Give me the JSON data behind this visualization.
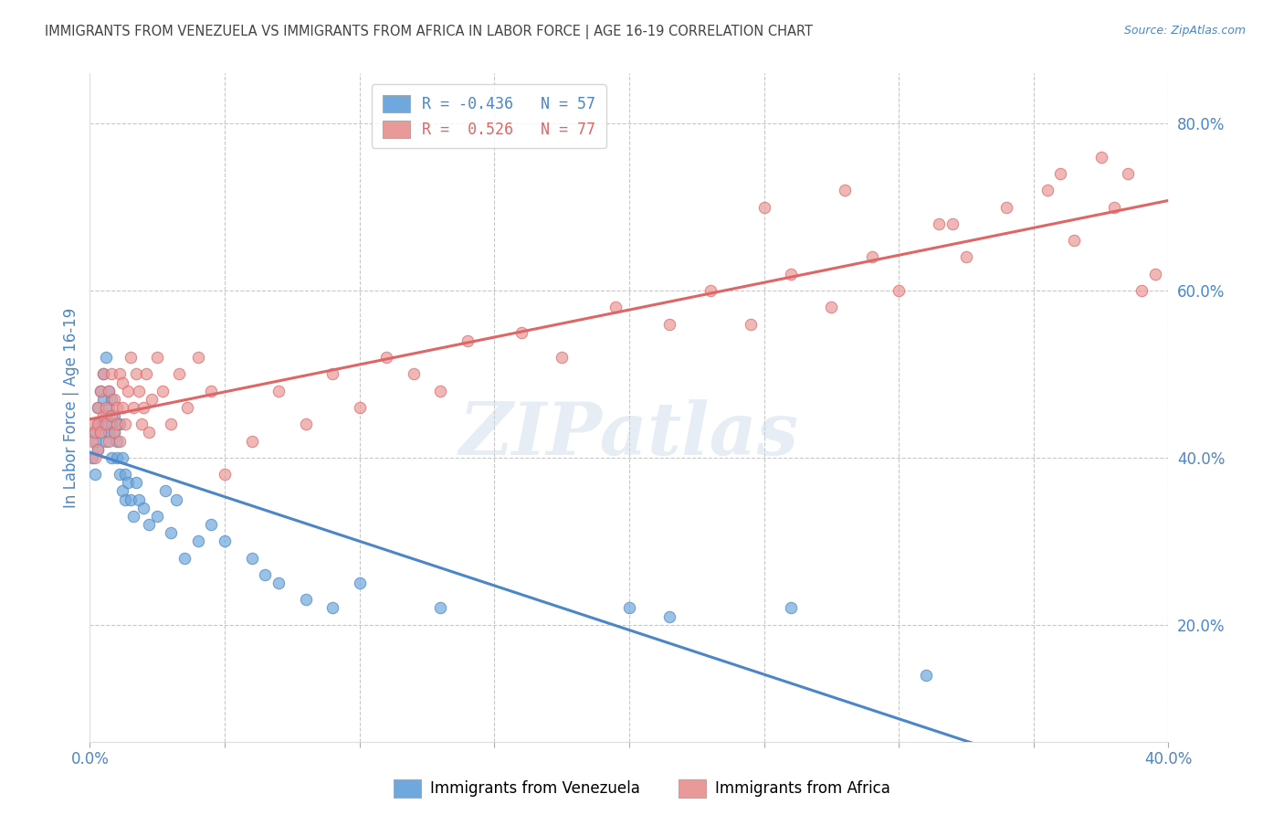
{
  "title": "IMMIGRANTS FROM VENEZUELA VS IMMIGRANTS FROM AFRICA IN LABOR FORCE | AGE 16-19 CORRELATION CHART",
  "source": "Source: ZipAtlas.com",
  "ylabel": "In Labor Force | Age 16-19",
  "xlim": [
    0.0,
    0.4
  ],
  "ylim": [
    0.06,
    0.86
  ],
  "xticks": [
    0.0,
    0.05,
    0.1,
    0.15,
    0.2,
    0.25,
    0.3,
    0.35,
    0.4
  ],
  "xtick_labels": [
    "0.0%",
    "",
    "",
    "",
    "",
    "",
    "",
    "",
    "40.0%"
  ],
  "yticks_right": [
    0.2,
    0.4,
    0.6,
    0.8
  ],
  "ytick_labels_right": [
    "20.0%",
    "40.0%",
    "60.0%",
    "80.0%"
  ],
  "blue_R": "-0.436",
  "blue_N": "57",
  "pink_R": "0.526",
  "pink_N": "77",
  "blue_color": "#6fa8dc",
  "pink_color": "#ea9999",
  "blue_line_color": "#4a86c8",
  "pink_line_color": "#e06666",
  "legend_label_blue": "Immigrants from Venezuela",
  "legend_label_pink": "Immigrants from Africa",
  "watermark": "ZIPatlas",
  "background_color": "#ffffff",
  "grid_color": "#c8c8c8",
  "title_color": "#444444",
  "axis_label_color": "#4a86c8",
  "venezuela_x": [
    0.001,
    0.001,
    0.002,
    0.002,
    0.003,
    0.003,
    0.003,
    0.004,
    0.004,
    0.005,
    0.005,
    0.005,
    0.006,
    0.006,
    0.006,
    0.007,
    0.007,
    0.007,
    0.008,
    0.008,
    0.008,
    0.009,
    0.009,
    0.01,
    0.01,
    0.011,
    0.011,
    0.012,
    0.012,
    0.013,
    0.013,
    0.014,
    0.015,
    0.016,
    0.017,
    0.018,
    0.02,
    0.022,
    0.025,
    0.028,
    0.03,
    0.032,
    0.035,
    0.04,
    0.045,
    0.05,
    0.06,
    0.065,
    0.07,
    0.08,
    0.09,
    0.1,
    0.13,
    0.2,
    0.215,
    0.26,
    0.31
  ],
  "venezuela_y": [
    0.4,
    0.43,
    0.42,
    0.38,
    0.44,
    0.41,
    0.46,
    0.43,
    0.48,
    0.44,
    0.47,
    0.5,
    0.42,
    0.45,
    0.52,
    0.43,
    0.46,
    0.48,
    0.4,
    0.44,
    0.47,
    0.43,
    0.45,
    0.4,
    0.42,
    0.44,
    0.38,
    0.36,
    0.4,
    0.35,
    0.38,
    0.37,
    0.35,
    0.33,
    0.37,
    0.35,
    0.34,
    0.32,
    0.33,
    0.36,
    0.31,
    0.35,
    0.28,
    0.3,
    0.32,
    0.3,
    0.28,
    0.26,
    0.25,
    0.23,
    0.22,
    0.25,
    0.22,
    0.22,
    0.21,
    0.22,
    0.14
  ],
  "africa_x": [
    0.001,
    0.001,
    0.002,
    0.002,
    0.003,
    0.003,
    0.003,
    0.004,
    0.004,
    0.005,
    0.005,
    0.006,
    0.006,
    0.007,
    0.007,
    0.008,
    0.008,
    0.009,
    0.009,
    0.01,
    0.01,
    0.011,
    0.011,
    0.012,
    0.012,
    0.013,
    0.014,
    0.015,
    0.016,
    0.017,
    0.018,
    0.019,
    0.02,
    0.021,
    0.022,
    0.023,
    0.025,
    0.027,
    0.03,
    0.033,
    0.036,
    0.04,
    0.045,
    0.05,
    0.06,
    0.07,
    0.08,
    0.09,
    0.1,
    0.11,
    0.12,
    0.13,
    0.14,
    0.16,
    0.175,
    0.195,
    0.215,
    0.23,
    0.245,
    0.26,
    0.275,
    0.29,
    0.3,
    0.315,
    0.325,
    0.34,
    0.355,
    0.365,
    0.375,
    0.385,
    0.25,
    0.28,
    0.32,
    0.36,
    0.38,
    0.39,
    0.395
  ],
  "africa_y": [
    0.42,
    0.44,
    0.4,
    0.43,
    0.44,
    0.46,
    0.41,
    0.48,
    0.43,
    0.45,
    0.5,
    0.44,
    0.46,
    0.48,
    0.42,
    0.45,
    0.5,
    0.43,
    0.47,
    0.44,
    0.46,
    0.5,
    0.42,
    0.46,
    0.49,
    0.44,
    0.48,
    0.52,
    0.46,
    0.5,
    0.48,
    0.44,
    0.46,
    0.5,
    0.43,
    0.47,
    0.52,
    0.48,
    0.44,
    0.5,
    0.46,
    0.52,
    0.48,
    0.38,
    0.42,
    0.48,
    0.44,
    0.5,
    0.46,
    0.52,
    0.5,
    0.48,
    0.54,
    0.55,
    0.52,
    0.58,
    0.56,
    0.6,
    0.56,
    0.62,
    0.58,
    0.64,
    0.6,
    0.68,
    0.64,
    0.7,
    0.72,
    0.66,
    0.76,
    0.74,
    0.7,
    0.72,
    0.68,
    0.74,
    0.7,
    0.6,
    0.62
  ]
}
